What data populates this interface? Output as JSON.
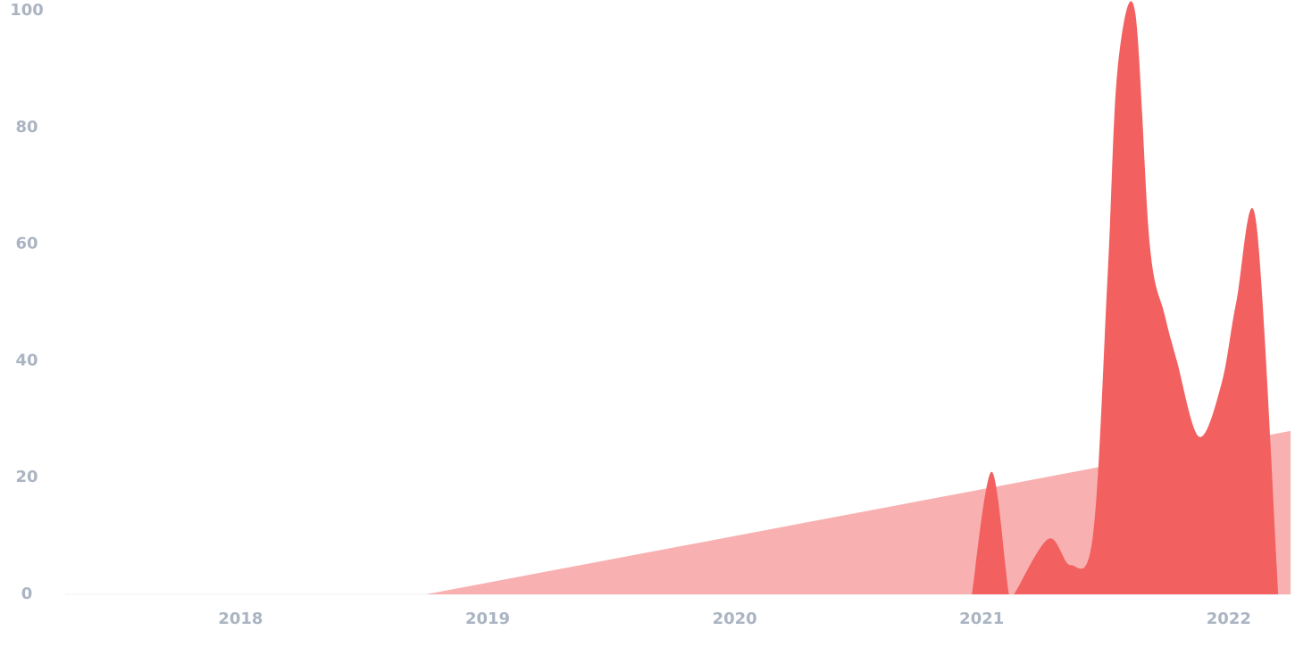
{
  "chart_data": {
    "type": "area",
    "xlim": [
      2017.29,
      2022.25
    ],
    "xticks": [
      2018,
      2019,
      2020,
      2021,
      2022
    ],
    "ylim": [
      0,
      100
    ],
    "yticks": [
      0,
      20,
      40,
      60,
      80,
      100
    ],
    "grid": false,
    "series": [
      {
        "color": "#f8b0b0",
        "x": [
          2017.29,
          2018.75,
          2022.25
        ],
        "values": [
          0,
          0,
          28
        ]
      },
      {
        "color": "#f26060",
        "x": [
          2020.96,
          2021.04,
          2021.11,
          2021.13,
          2021.27,
          2021.36,
          2021.45,
          2021.51,
          2021.55,
          2021.62,
          2021.68,
          2021.74,
          2021.79,
          2021.88,
          2021.97,
          2022.03,
          2022.11,
          2022.2
        ],
        "values": [
          0,
          21,
          0,
          0,
          9.5,
          5,
          10,
          55,
          90,
          100,
          60,
          48,
          40,
          27,
          36,
          50,
          64,
          0
        ]
      }
    ]
  }
}
